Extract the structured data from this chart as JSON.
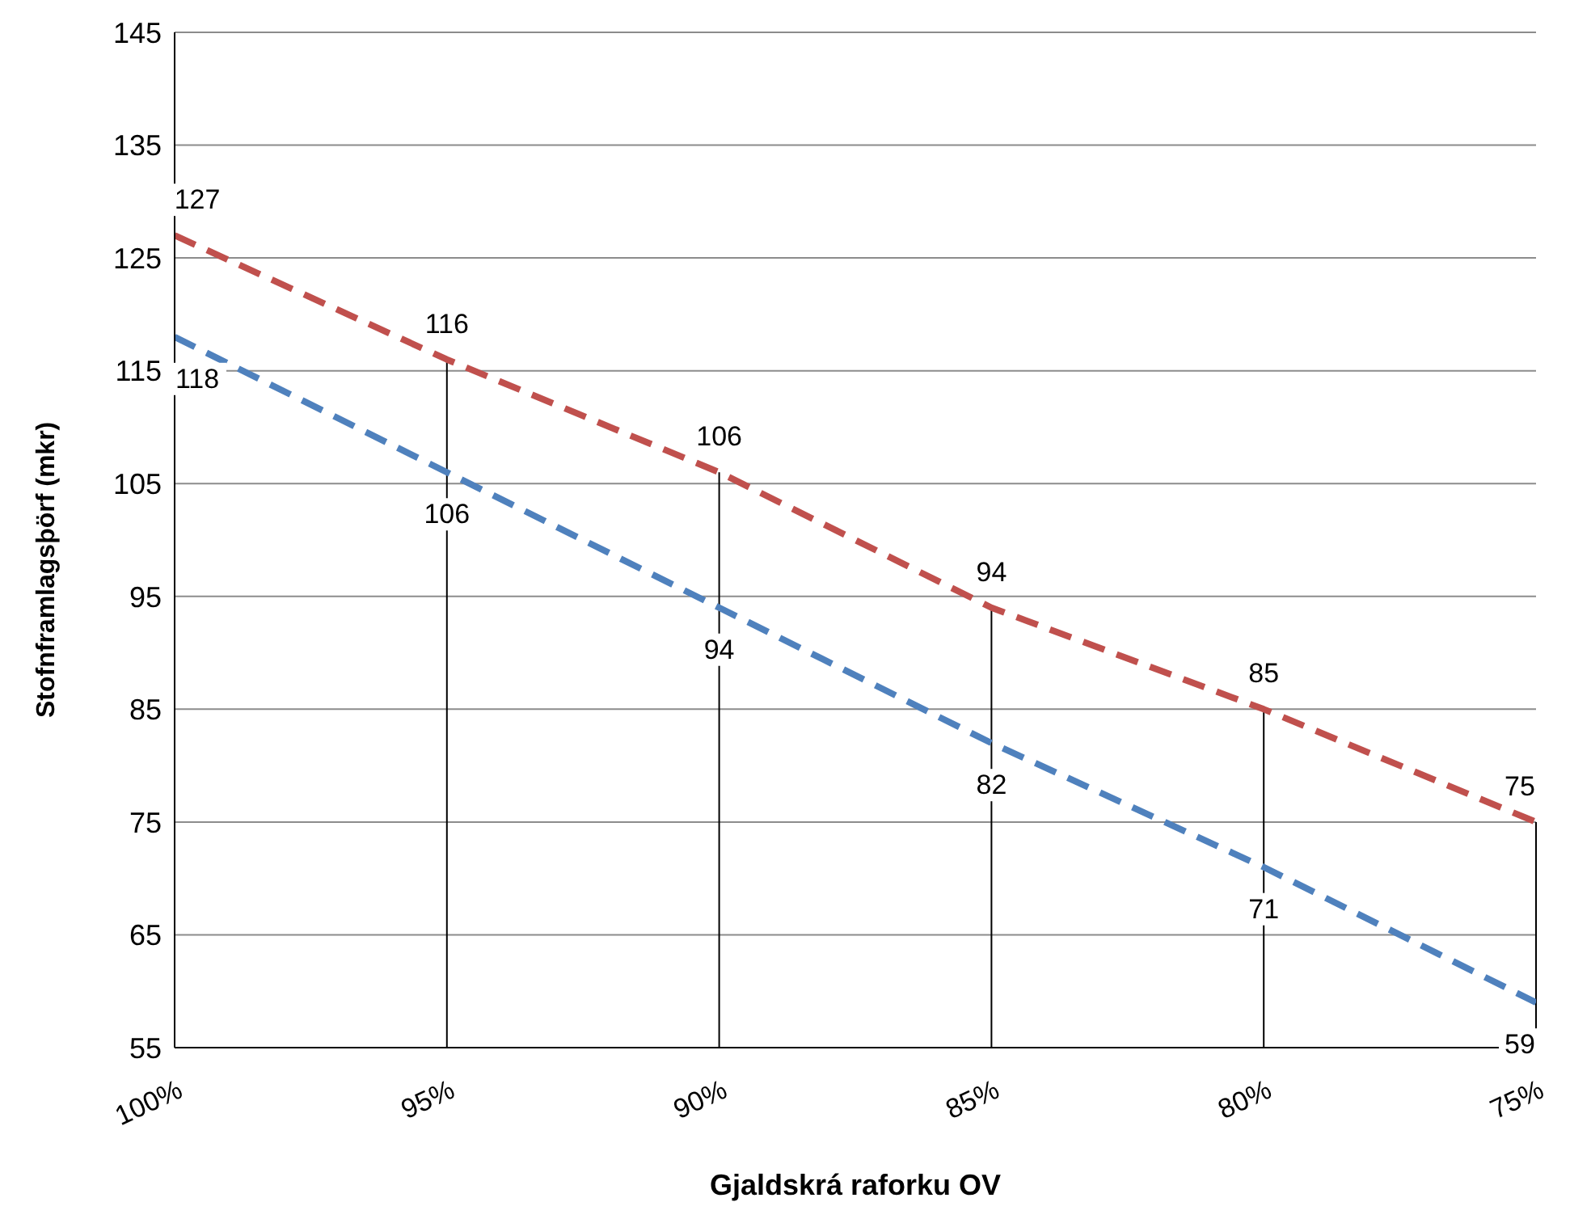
{
  "chart_data": {
    "type": "line",
    "xlabel": "Gjaldskrá raforku OV",
    "ylabel": "Stofnframlagsþörf (mkr)",
    "categories": [
      "100%",
      "95%",
      "90%",
      "85%",
      "80%",
      "75%"
    ],
    "series": [
      {
        "color": "#c0504d",
        "values": [
          127,
          116,
          106,
          94,
          85,
          75
        ]
      },
      {
        "color": "#4f81bd",
        "values": [
          118,
          106,
          94,
          82,
          71,
          59
        ]
      }
    ],
    "ylim": [
      55,
      145
    ],
    "yticks": [
      55,
      65,
      75,
      85,
      95,
      105,
      115,
      125,
      135,
      145
    ],
    "grid": "y",
    "legend": false,
    "marker": "none",
    "line_style": "dashed",
    "data_labels": true,
    "ref_lines": [
      {
        "axis": "x",
        "value": "95%",
        "color": "#000000"
      },
      {
        "axis": "x",
        "value": "90%",
        "color": "#000000"
      },
      {
        "axis": "x",
        "value": "85%",
        "color": "#000000"
      },
      {
        "axis": "x",
        "value": "80%",
        "color": "#000000"
      },
      {
        "axis": "x",
        "value": "75%",
        "color": "#000000"
      }
    ]
  }
}
